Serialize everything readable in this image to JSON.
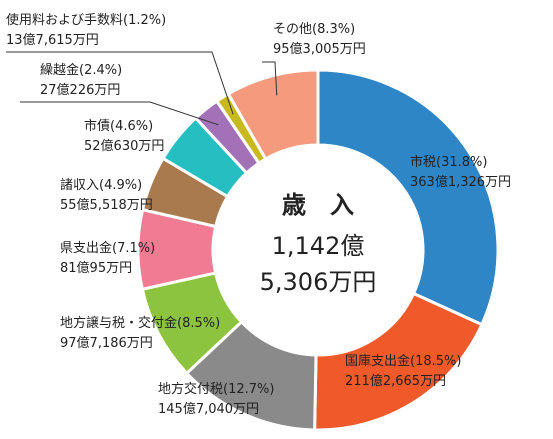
{
  "chart_data": {
    "type": "pie",
    "donut": true,
    "center": {
      "title": "歳　入",
      "line1": "1,142億",
      "line2": "5,306万円"
    },
    "slices": [
      {
        "name": "市税",
        "percent": 31.8,
        "pct_text": "(31.8%)",
        "amount": "363億1,326万円",
        "color": "#2f86c7"
      },
      {
        "name": "国庫支出金",
        "percent": 18.5,
        "pct_text": "(18.5%)",
        "amount": "211億2,665万円",
        "color": "#f05a2a"
      },
      {
        "name": "地方交付税",
        "percent": 12.7,
        "pct_text": "(12.7%)",
        "amount": "145億7,040万円",
        "color": "#8a8a8a"
      },
      {
        "name": "地方譲与税・交付金",
        "percent": 8.5,
        "pct_text": "(8.5%)",
        "amount": "97億7,186万円",
        "color": "#8dc43f"
      },
      {
        "name": "県支出金",
        "percent": 7.1,
        "pct_text": "(7.1%)",
        "amount": "81億95万円",
        "color": "#f07b93"
      },
      {
        "name": "諸収入",
        "percent": 4.9,
        "pct_text": "(4.9%)",
        "amount": "55億5,518万円",
        "color": "#a97a4e"
      },
      {
        "name": "市債",
        "percent": 4.6,
        "pct_text": "(4.6%)",
        "amount": "52億630万円",
        "color": "#25bfc1"
      },
      {
        "name": "繰越金",
        "percent": 2.4,
        "pct_text": "(2.4%)",
        "amount": "27億226万円",
        "color": "#a371b8"
      },
      {
        "name": "使用料および手数料",
        "percent": 1.2,
        "pct_text": "(1.2%)",
        "amount": "13億7,615万円",
        "color": "#c8b91e"
      },
      {
        "name": "その他",
        "percent": 8.3,
        "pct_text": "(8.3%)",
        "amount": "95億3,005万円",
        "color": "#f59a7c"
      }
    ]
  }
}
